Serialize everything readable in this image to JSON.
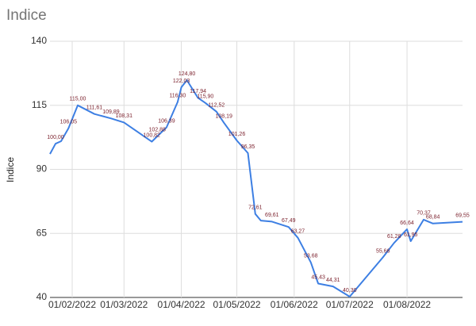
{
  "chart_data": {
    "type": "line",
    "title": "Indice",
    "y_label": "Indice",
    "x": [
      "2022-01-20",
      "2022-01-23",
      "2022-01-26",
      "2022-01-30",
      "2022-02-04",
      "2022-02-13",
      "2022-02-22",
      "2022-03-01",
      "2022-03-16",
      "2022-03-19",
      "2022-03-24",
      "2022-03-30",
      "2022-04-01",
      "2022-04-04",
      "2022-04-10",
      "2022-04-14",
      "2022-04-20",
      "2022-04-24",
      "2022-05-01",
      "2022-05-07",
      "2022-05-11",
      "2022-05-14",
      "2022-05-20",
      "2022-05-29",
      "2022-06-03",
      "2022-06-10",
      "2022-06-14",
      "2022-06-22",
      "2022-07-01",
      "2022-07-19",
      "2022-07-25",
      "2022-08-01",
      "2022-08-03",
      "2022-08-10",
      "2022-08-15",
      "2022-08-31"
    ],
    "values": [
      96,
      100,
      101,
      106.05,
      115,
      111.61,
      109.89,
      108.31,
      100.82,
      102.88,
      106.39,
      116.3,
      122.03,
      124.8,
      117.94,
      115.9,
      112.52,
      108.19,
      101.26,
      96.35,
      72.61,
      70,
      69.61,
      67.49,
      63.27,
      53.68,
      45.43,
      44.31,
      40.3,
      55.66,
      61.28,
      66.64,
      61.95,
      70.37,
      68.84,
      69.55
    ],
    "value_labels": [
      null,
      "100,00",
      null,
      "106,05",
      "115,00",
      "111,61",
      "109,89",
      "108,31",
      "100,82",
      "102,88",
      "106,39",
      "116,30",
      "122,03",
      "124,80",
      "117,94",
      "115,90",
      "112,52",
      "108,19",
      "101,26",
      "96,35",
      "72,61",
      null,
      "69,61",
      "67,49",
      "63,27",
      "53,68",
      "45,43",
      "44,31",
      "40,30",
      "55,66",
      "61,28",
      "66,64",
      "61,95",
      "70,37",
      "68,84",
      "69,55"
    ],
    "color": "#3d7fe3",
    "xlim": [
      "2022-01-20",
      "2022-08-31"
    ],
    "xticks": [
      {
        "value": "2022-02-01",
        "label": "01/02/2022"
      },
      {
        "value": "2022-03-01",
        "label": "01/03/2022"
      },
      {
        "value": "2022-04-01",
        "label": "01/04/2022"
      },
      {
        "value": "2022-05-01",
        "label": "01/05/2022"
      },
      {
        "value": "2022-06-01",
        "label": "01/06/2022"
      },
      {
        "value": "2022-07-01",
        "label": "01/07/2022"
      },
      {
        "value": "2022-08-01",
        "label": "01/08/2022"
      }
    ],
    "ylim": [
      40,
      140
    ],
    "yticks": [
      40,
      65,
      90,
      115,
      140
    ],
    "grid": true
  }
}
